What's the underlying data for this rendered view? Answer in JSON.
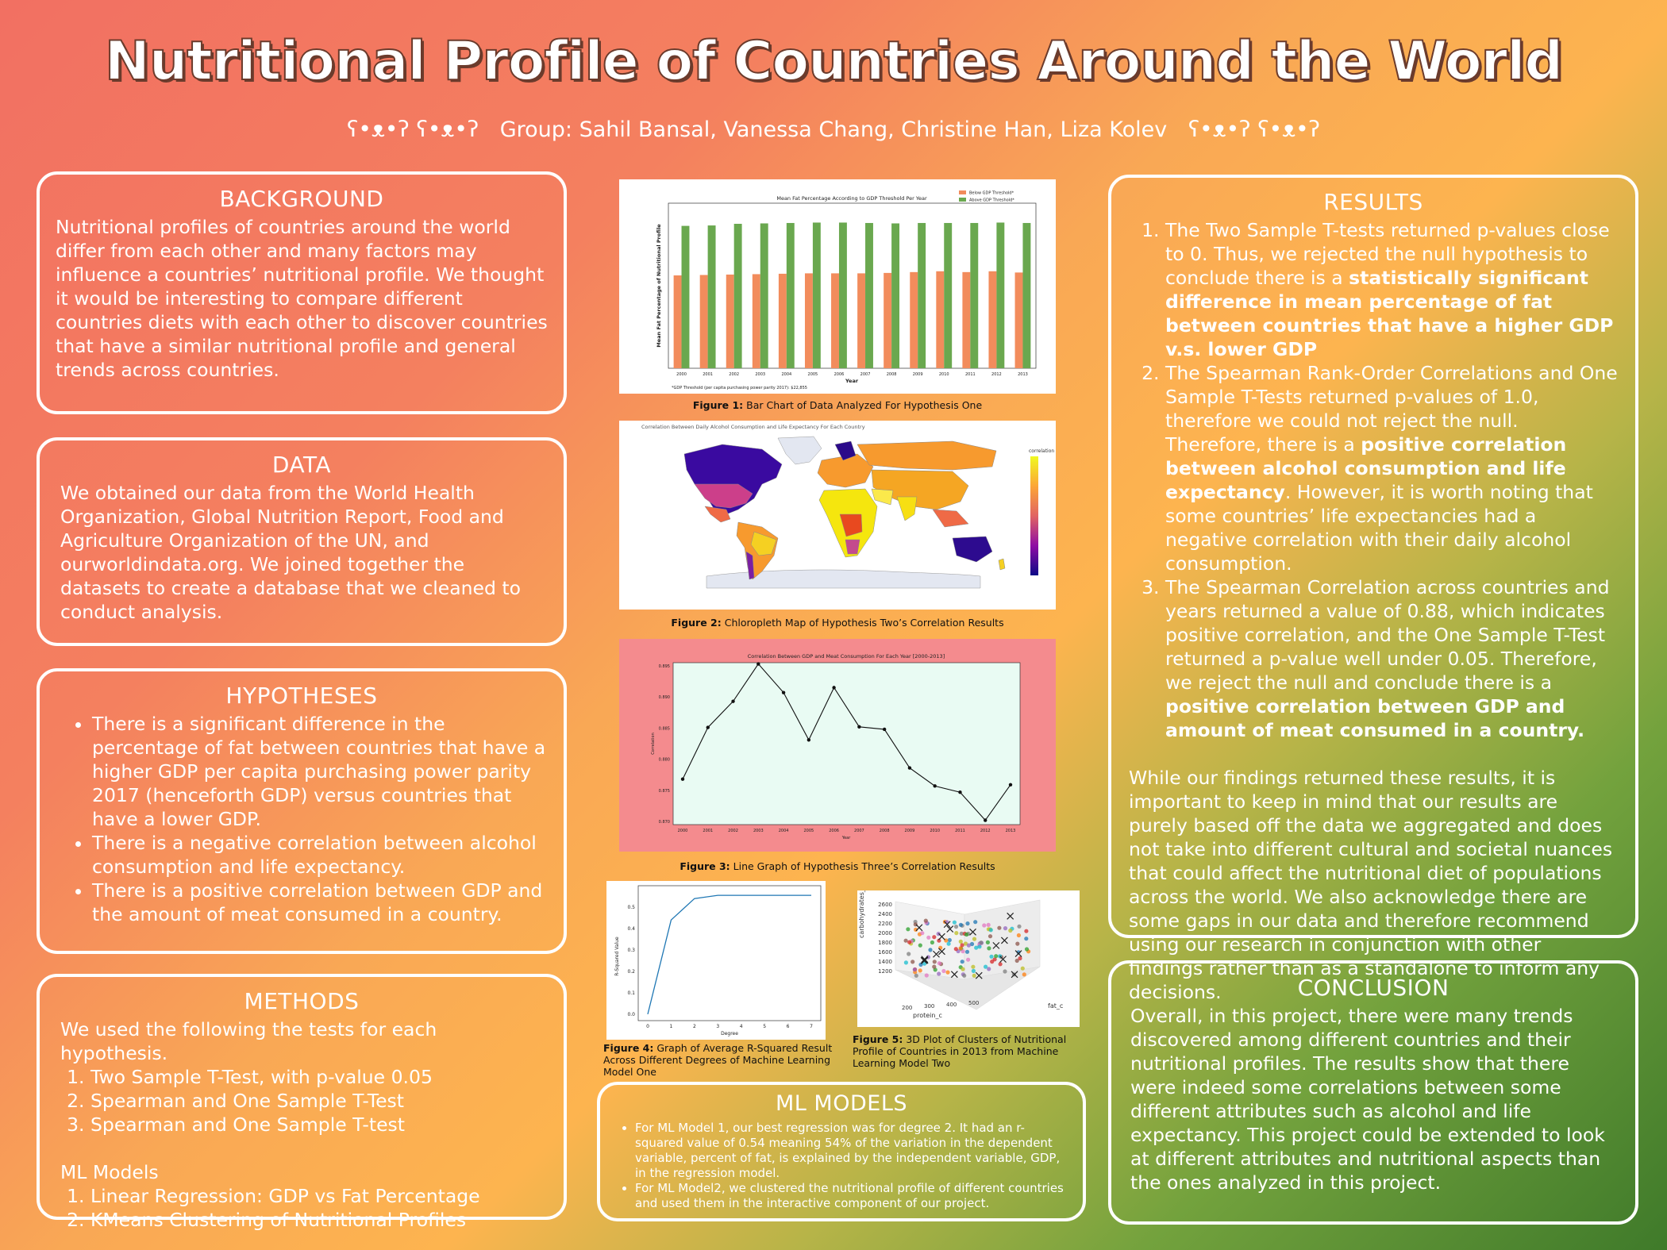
{
  "title": "Nutritional Profile of Countries Around the World",
  "subtitle": {
    "bears_left": "ʕ•ᴥ•ʔ ʕ•ᴥ•ʔ",
    "group": "Group: Sahil Bansal, Vanessa Chang, Christine Han, Liza Kolev",
    "bears_right": "ʕ•ᴥ•ʔ ʕ•ᴥ•ʔ"
  },
  "background": {
    "heading": "BACKGROUND",
    "text": "Nutritional profiles of countries around the world differ from each other and many factors may influence a countries’ nutritional profile. We thought it would be interesting to compare different countries diets with each other to discover countries that have a similar nutritional profile and general trends across countries."
  },
  "data_section": {
    "heading": "DATA",
    "text": "We obtained our data from the World Health Organization,  Global Nutrition Report, Food and Agriculture Organization of the UN, and ourworldindata.org. We joined together the datasets to create a database that we cleaned to conduct analysis."
  },
  "hypotheses": {
    "heading": "HYPOTHESES",
    "items": [
      "There is a significant difference in the percentage of fat between countries that have a higher GDP per capita purchasing power parity 2017 (henceforth GDP) versus countries that have a lower GDP.",
      "There is a negative correlation between alcohol consumption and life expectancy.",
      "There is a positive correlation between GDP and the amount of meat consumed in a country."
    ]
  },
  "methods": {
    "heading": "METHODS",
    "intro": "We used the following the tests for each hypothesis.",
    "tests": [
      "Two Sample T-Test, with p-value 0.05",
      "Spearman and One Sample T-Test",
      "Spearman and One Sample T-test"
    ],
    "ml_heading": "ML Models",
    "ml_items": [
      "Linear Regression: GDP vs Fat Percentage",
      "KMeans Clustering of Nutritional Profiles"
    ]
  },
  "results": {
    "heading": "RESULTS",
    "r1_a": "The Two Sample T-tests returned p-values close to 0. Thus, we rejected the null hypothesis to conclude there is a ",
    "r1_b": "statistically significant difference in mean percentage of fat between countries that have a higher GDP v.s. lower GDP",
    "r2_a": "The Spearman Rank-Order Correlations and One Sample T-Tests returned p-values of 1.0, therefore we could not reject the null. Therefore, there is a ",
    "r2_b": "positive correlation between alcohol consumption and life expectancy",
    "r2_c": ". However, it is worth noting that some countries’ life expectancies had a negative correlation with their daily alcohol consumption.",
    "r3_a": "The Spearman Correlation across countries and years returned a value of 0.88, which indicates positive correlation, and the One Sample T-Test returned a p-value well under 0.05. Therefore, we reject the null and conclude there is a ",
    "r3_b": "positive correlation between GDP and amount of meat consumed in a country.",
    "closing": "While our findings returned these results, it is important to keep in mind that our results are purely based off the data we aggregated and does not take into different cultural and societal nuances that could affect the nutritional diet of populations across the world. We also acknowledge there are some gaps in our data and therefore recommend using our research in conjunction with other findings rather than as a standalone to inform any decisions."
  },
  "conclusion": {
    "heading": "CONCLUSION",
    "text": "Overall, in this project, there were many trends discovered among different countries and their nutritional profiles. The results show that there were indeed some correlations between some different attributes such as alcohol and life expectancy. This project could be extended to look at different attributes and nutritional aspects than the ones analyzed in this project."
  },
  "ml_models": {
    "heading": "ML MODELS",
    "items": [
      "For ML Model 1, our best regression was for degree 2. It had an r-squared value of 0.54 meaning 54% of the variation in the dependent variable, percent of fat, is explained by the independent variable, GDP, in the regression model.",
      "For ML Model2, we clustered the nutritional profile of different countries and used them in the interactive component of our project."
    ]
  },
  "figures": {
    "fig1": {
      "label": "Figure 1:",
      "caption": " Bar Chart of Data Analyzed For Hypothesis One"
    },
    "fig2": {
      "label": "Figure 2:",
      "caption": " Chloropleth Map of Hypothesis Two’s Correlation Results",
      "title": "Correlation Between Daily Alcohol Consumption and Life Expectancy For Each Country",
      "colorbar_label": "correlation"
    },
    "fig3": {
      "label": "Figure 3:",
      "caption": " Line Graph of Hypothesis Three’s Correlation Results"
    },
    "fig4": {
      "label": "Figure 4:",
      "caption": " Graph of Average R-Squared Result Across Different Degrees of Machine Learning Model One"
    },
    "fig5": {
      "label": "Figure 5:",
      "caption": " 3D Plot of Clusters of Nutritional Profile of Countries in 2013 from Machine Learning Model Two",
      "xlabel": "protein_c",
      "ylabel": "fat_c",
      "zlabel": "carbohydrates_c"
    }
  },
  "colors": {
    "below": "#f28c5c",
    "above": "#6aa84f",
    "line": "#111111",
    "fig3_bg": "#f48b8e",
    "fig3_plot": "#e9fbf3"
  },
  "chart_data": [
    {
      "type": "bar",
      "title": "Mean Fat Percentage According to GDP Threshold Per Year",
      "xlabel": "Year",
      "ylabel": "Mean Fat Percentage of Nutritional Profile",
      "note": "*GDP Threshold (per capita purchasing power parity 2017): $22,855",
      "categories": [
        "2000",
        "2001",
        "2002",
        "2003",
        "2004",
        "2005",
        "2006",
        "2007",
        "2008",
        "2009",
        "2010",
        "2011",
        "2012",
        "2013"
      ],
      "series": [
        {
          "name": "Below GDP Threshold*",
          "values": [
            22.5,
            22.6,
            22.7,
            22.8,
            22.9,
            23.0,
            23.0,
            23.0,
            23.1,
            23.3,
            23.5,
            23.3,
            23.5,
            23.2
          ]
        },
        {
          "name": "Above GDP Threshold*",
          "values": [
            34.5,
            34.6,
            35.0,
            35.1,
            35.2,
            35.3,
            35.3,
            35.2,
            35.1,
            35.2,
            35.2,
            35.2,
            35.3,
            35.2
          ]
        }
      ],
      "ylim": [
        0,
        40
      ]
    },
    {
      "type": "line",
      "title": "Correlation Between GDP and Meat Consumption For Each Year [2000-2013]",
      "xlabel": "Year",
      "ylabel": "Correlation",
      "x": [
        "2000",
        "2001",
        "2002",
        "2003",
        "2004",
        "2005",
        "2006",
        "2007",
        "2008",
        "2009",
        "2010",
        "2011",
        "2012",
        "2013"
      ],
      "values": [
        0.8768,
        0.8851,
        0.8893,
        0.8953,
        0.8907,
        0.8831,
        0.8915,
        0.8852,
        0.8848,
        0.8786,
        0.8757,
        0.8747,
        0.8702,
        0.8759
      ],
      "yticks": [
        "0.870",
        "0.875",
        "0.880",
        "0.885",
        "0.890",
        "0.895"
      ],
      "ylim": [
        0.8695,
        0.8955
      ]
    },
    {
      "type": "line",
      "xlabel": "Degree",
      "ylabel": "R-Squared Value",
      "x": [
        0,
        1,
        2,
        3,
        4,
        5,
        6,
        7
      ],
      "values": [
        0.0,
        0.44,
        0.54,
        0.555,
        0.555,
        0.555,
        0.555,
        0.555
      ],
      "yticks": [
        "0.0",
        "0.1",
        "0.2",
        "0.3",
        "0.4",
        "0.5"
      ],
      "ylim": [
        -0.03,
        0.6
      ]
    }
  ]
}
